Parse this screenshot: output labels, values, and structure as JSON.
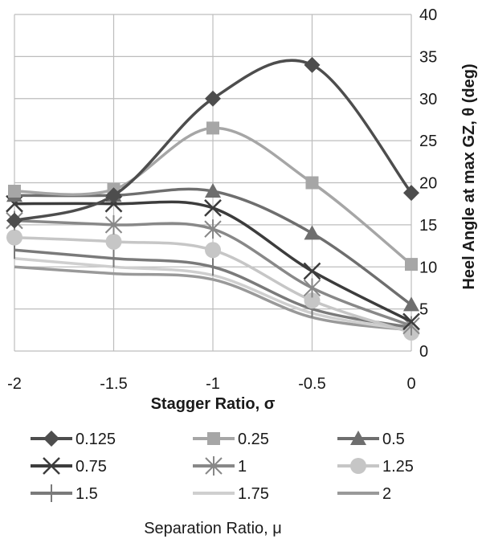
{
  "chart_data": {
    "type": "line",
    "xlabel": "Stagger Ratio, σ",
    "ylabel": "Heel Angle at max GZ, θ (deg)",
    "xlim": [
      -2,
      0
    ],
    "ylim": [
      0,
      40
    ],
    "x_ticks": [
      "-2",
      "-1.5",
      "-1",
      "-0.5",
      "0"
    ],
    "y_ticks": [
      "0",
      "5",
      "10",
      "15",
      "20",
      "25",
      "30",
      "35",
      "40"
    ],
    "grid": true,
    "legend_title": "Separation Ratio, μ",
    "legend_position": "bottom",
    "x": [
      -2,
      -1.5,
      -1,
      -0.5,
      0
    ],
    "series": [
      {
        "name": "0.125",
        "values": [
          15.5,
          18.5,
          30,
          34,
          18.8
        ],
        "color": "#4d4d4d",
        "marker": "diamond"
      },
      {
        "name": "0.25",
        "values": [
          19,
          19.2,
          26.5,
          20,
          10.3
        ],
        "color": "#a6a6a6",
        "marker": "square"
      },
      {
        "name": "0.5",
        "values": [
          18.5,
          18.5,
          19,
          14,
          5.5
        ],
        "color": "#6e6e6e",
        "marker": "triangle"
      },
      {
        "name": "0.75",
        "values": [
          17.5,
          17.5,
          17,
          9.5,
          3.5
        ],
        "color": "#3c3c3c",
        "marker": "x"
      },
      {
        "name": "1",
        "values": [
          15.5,
          15,
          14.5,
          7.5,
          3
        ],
        "color": "#888888",
        "marker": "star"
      },
      {
        "name": "1.25",
        "values": [
          13.5,
          13,
          12,
          6,
          2.2
        ],
        "color": "#c6c6c6",
        "marker": "circle"
      },
      {
        "name": "1.5",
        "values": [
          12,
          11,
          10,
          5,
          2.8
        ],
        "color": "#7a7a7a",
        "marker": "plus"
      },
      {
        "name": "1.75",
        "values": [
          11,
          10,
          9,
          4.5,
          2.5
        ],
        "color": "#cfcfcf",
        "marker": "none"
      },
      {
        "name": "2",
        "values": [
          10,
          9.2,
          8.5,
          4,
          2.5
        ],
        "color": "#999999",
        "marker": "none"
      }
    ]
  }
}
